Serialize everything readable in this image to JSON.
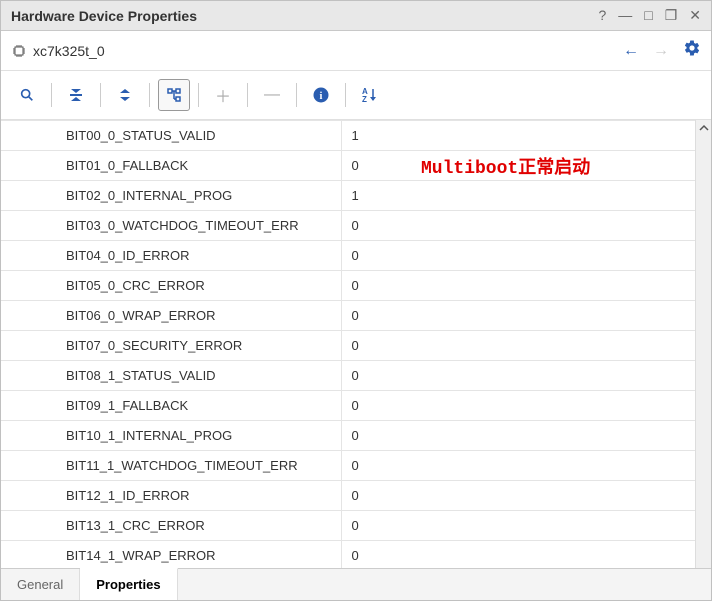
{
  "window": {
    "title": "Hardware Device Properties"
  },
  "device": {
    "name": "xc7k325t_0"
  },
  "annotation": {
    "text": "Multiboot正常启动",
    "color": "#e00000"
  },
  "properties": [
    {
      "name": "BIT00_0_STATUS_VALID",
      "value": "1"
    },
    {
      "name": "BIT01_0_FALLBACK",
      "value": "0"
    },
    {
      "name": "BIT02_0_INTERNAL_PROG",
      "value": "1"
    },
    {
      "name": "BIT03_0_WATCHDOG_TIMEOUT_ERR",
      "value": "0"
    },
    {
      "name": "BIT04_0_ID_ERROR",
      "value": "0"
    },
    {
      "name": "BIT05_0_CRC_ERROR",
      "value": "0"
    },
    {
      "name": "BIT06_0_WRAP_ERROR",
      "value": "0"
    },
    {
      "name": "BIT07_0_SECURITY_ERROR",
      "value": "0"
    },
    {
      "name": "BIT08_1_STATUS_VALID",
      "value": "0"
    },
    {
      "name": "BIT09_1_FALLBACK",
      "value": "0"
    },
    {
      "name": "BIT10_1_INTERNAL_PROG",
      "value": "0"
    },
    {
      "name": "BIT11_1_WATCHDOG_TIMEOUT_ERR",
      "value": "0"
    },
    {
      "name": "BIT12_1_ID_ERROR",
      "value": "0"
    },
    {
      "name": "BIT13_1_CRC_ERROR",
      "value": "0"
    },
    {
      "name": "BIT14_1_WRAP_ERROR",
      "value": "0"
    }
  ],
  "tabs": {
    "general": "General",
    "properties": "Properties"
  },
  "colors": {
    "border": "#e4e4e4",
    "text": "#333333",
    "accent": "#2a5db0"
  }
}
